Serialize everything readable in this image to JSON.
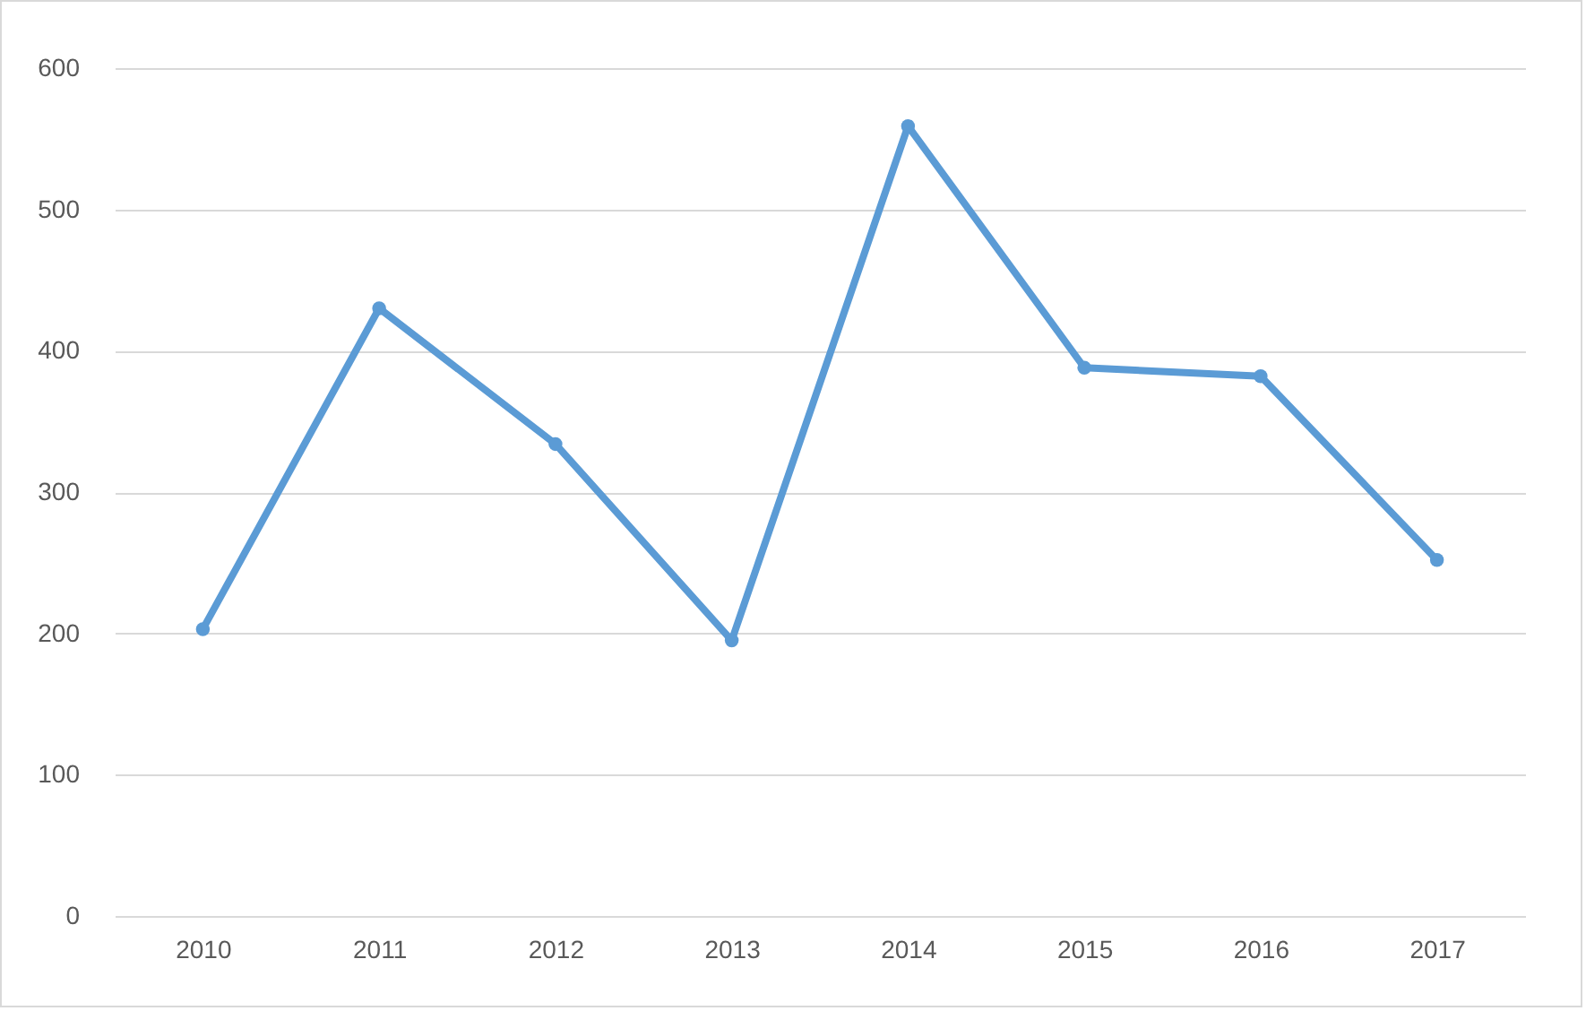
{
  "chart_data": {
    "type": "line",
    "categories": [
      "2010",
      "2011",
      "2012",
      "2013",
      "2014",
      "2015",
      "2016",
      "2017"
    ],
    "series": [
      {
        "color": "#5b9bd5",
        "values": [
          203,
          430,
          334,
          195,
          559,
          388,
          382,
          252
        ]
      }
    ],
    "ylim": [
      0,
      600
    ],
    "yticks": [
      0,
      100,
      200,
      300,
      400,
      500,
      600
    ],
    "grid": "y",
    "marker": "circle",
    "line_style": "solid"
  }
}
